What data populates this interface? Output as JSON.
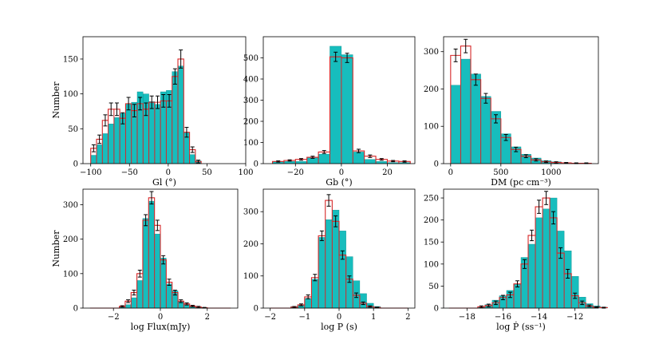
{
  "colors": {
    "fill": "#17bdbd",
    "step": "#d62728",
    "bar_edge": "#0e8f8f",
    "errorbar": "#000000"
  },
  "chart_data": [
    {
      "id": "gl",
      "type": "bar",
      "xlabel": "Gl (°)",
      "ylabel": "Number",
      "xlim": [
        -110,
        100
      ],
      "ylim": [
        0,
        182
      ],
      "xticks": [
        -100,
        -50,
        0,
        50,
        100
      ],
      "yticks": [
        0,
        50,
        100,
        150
      ],
      "bin_start": -100,
      "bin_width": 7.5,
      "observed": [
        12,
        27,
        43,
        57,
        66,
        72,
        86,
        88,
        103,
        100,
        89,
        85,
        103,
        105,
        132,
        140,
        45,
        13,
        4
      ],
      "simulated": [
        22,
        35,
        62,
        78,
        78,
        65,
        86,
        76,
        86,
        78,
        88,
        88,
        90,
        90,
        125,
        150,
        45,
        20,
        3
      ],
      "errors": [
        5,
        6,
        8,
        9,
        9,
        8,
        9,
        9,
        9,
        9,
        9,
        9,
        9,
        9,
        11,
        13,
        7,
        4,
        2
      ]
    },
    {
      "id": "gb",
      "type": "bar",
      "xlabel": "Gb (°)",
      "ylabel": "",
      "xlim": [
        -34,
        32
      ],
      "ylim": [
        0,
        600
      ],
      "xticks": [
        -20,
        0,
        20
      ],
      "yticks": [
        0,
        100,
        200,
        300,
        400,
        500
      ],
      "bin_start": -30,
      "bin_width": 5,
      "observed": [
        10,
        10,
        10,
        30,
        45,
        555,
        515,
        55,
        20,
        10,
        5,
        5
      ],
      "simulated": [
        10,
        15,
        20,
        30,
        55,
        505,
        500,
        60,
        35,
        20,
        12,
        10
      ],
      "errors": [
        3,
        3,
        4,
        5,
        7,
        22,
        22,
        8,
        6,
        4,
        3,
        3
      ]
    },
    {
      "id": "dm",
      "type": "bar",
      "xlabel": "DM (pc cm⁻³)",
      "ylabel": "",
      "xlim": [
        -70,
        1470
      ],
      "ylim": [
        0,
        340
      ],
      "xticks": [
        0,
        500,
        1000
      ],
      "yticks": [
        0,
        100,
        200,
        300
      ],
      "bin_start": 0,
      "bin_width": 100,
      "observed": [
        210,
        280,
        240,
        180,
        140,
        80,
        45,
        25,
        15,
        8,
        5,
        0,
        0,
        0
      ],
      "simulated": [
        290,
        315,
        225,
        175,
        120,
        70,
        38,
        20,
        10,
        5,
        3,
        2,
        1,
        1
      ],
      "errors": [
        17,
        18,
        15,
        13,
        11,
        8,
        6,
        4,
        3,
        2,
        2,
        1,
        1,
        1
      ]
    },
    {
      "id": "flux",
      "type": "bar",
      "xlabel": "log Flux(mJy)",
      "ylabel": "Number",
      "xlim": [
        -3.3,
        3.3
      ],
      "ylim": [
        0,
        345
      ],
      "xticks": [
        -2,
        0,
        2
      ],
      "yticks": [
        0,
        100,
        200,
        300
      ],
      "bin_start": -3,
      "bin_width": 0.25,
      "observed": [
        0,
        0,
        0,
        0,
        0,
        3,
        10,
        30,
        80,
        260,
        310,
        215,
        145,
        70,
        50,
        20,
        10,
        5,
        3,
        0,
        0,
        0,
        0,
        0
      ],
      "simulated": [
        0,
        0,
        0,
        0,
        0,
        5,
        20,
        45,
        100,
        255,
        320,
        240,
        140,
        75,
        45,
        20,
        12,
        6,
        3,
        1,
        0,
        0,
        0,
        0
      ],
      "errors": [
        0,
        0,
        0,
        0,
        0,
        2,
        4,
        7,
        10,
        16,
        18,
        15,
        12,
        9,
        7,
        4,
        3,
        2,
        2,
        1,
        0,
        0,
        0,
        0
      ]
    },
    {
      "id": "period",
      "type": "bar",
      "xlabel": "log P (s)",
      "ylabel": "",
      "xlim": [
        -2.2,
        2.2
      ],
      "ylim": [
        0,
        370
      ],
      "xticks": [
        -2,
        -1,
        0,
        1,
        2
      ],
      "yticks": [
        0,
        100,
        200,
        300
      ],
      "bin_start": -2,
      "bin_width": 0.2,
      "observed": [
        0,
        0,
        0,
        5,
        10,
        30,
        90,
        220,
        275,
        305,
        240,
        160,
        85,
        45,
        15,
        5,
        0,
        0,
        0,
        0
      ],
      "simulated": [
        0,
        0,
        0,
        3,
        10,
        35,
        95,
        225,
        335,
        270,
        165,
        90,
        40,
        15,
        5,
        2,
        0,
        0,
        0,
        0
      ],
      "errors": [
        0,
        0,
        0,
        2,
        3,
        6,
        10,
        15,
        18,
        17,
        13,
        10,
        7,
        4,
        2,
        1,
        0,
        0,
        0,
        0
      ]
    },
    {
      "id": "pdot",
      "type": "bar",
      "xlabel": "log Ṗ (ss⁻¹)",
      "ylabel": "",
      "xlim": [
        -19.3,
        -10.7
      ],
      "ylim": [
        0,
        270
      ],
      "xticks": [
        -18,
        -16,
        -14,
        -12
      ],
      "yticks": [
        0,
        50,
        100,
        150,
        200,
        250
      ],
      "bin_start": -19,
      "bin_width": 0.4,
      "observed": [
        0,
        0,
        0,
        0,
        3,
        8,
        18,
        28,
        40,
        55,
        115,
        145,
        205,
        225,
        250,
        175,
        130,
        72,
        25,
        10,
        5,
        2
      ],
      "simulated": [
        0,
        0,
        0,
        0,
        3,
        6,
        12,
        24,
        30,
        55,
        100,
        165,
        230,
        250,
        205,
        125,
        78,
        28,
        12,
        5,
        2,
        1
      ],
      "errors": [
        0,
        0,
        0,
        0,
        2,
        3,
        4,
        5,
        6,
        7,
        10,
        12,
        15,
        15,
        14,
        12,
        10,
        6,
        4,
        2,
        1,
        1
      ]
    }
  ]
}
